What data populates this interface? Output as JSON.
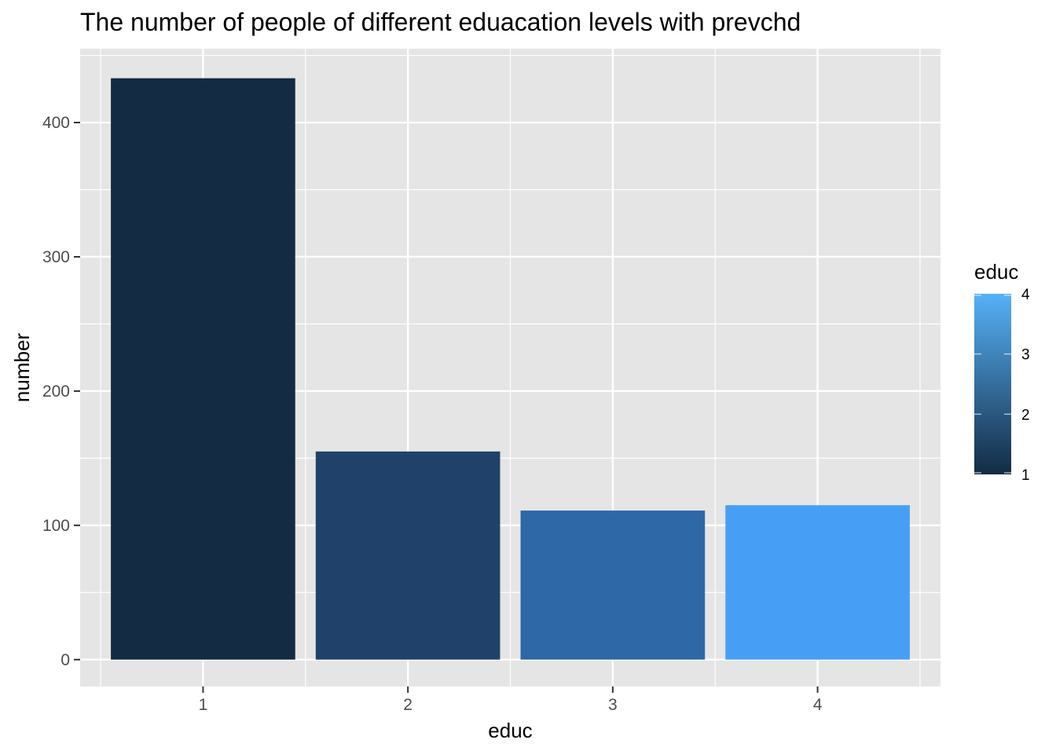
{
  "chart_data": {
    "type": "bar",
    "title": "The number of people of different eduacation levels with prevchd",
    "xlabel": "educ",
    "ylabel": "number",
    "categories": [
      "1",
      "2",
      "3",
      "4"
    ],
    "values": [
      433,
      155,
      111,
      115
    ],
    "ylim": [
      -20,
      455
    ],
    "yticks": [
      0,
      100,
      200,
      300,
      400
    ],
    "y_tick_labels": [
      "0",
      "100",
      "200",
      "300",
      "400"
    ],
    "grid": true,
    "legend": {
      "title": "educ",
      "position": "right",
      "type": "colorbar",
      "range": [
        1,
        4
      ],
      "ticks": [
        1,
        2,
        3,
        4
      ],
      "tick_labels": [
        "1",
        "2",
        "3",
        "4"
      ],
      "low_color": "#132b43",
      "high_color": "#56b1f7"
    },
    "bar_colors": [
      "#132b43",
      "#20426a",
      "#2e68a7",
      "#479ff5"
    ],
    "panel_background": "#e5e5e5",
    "grid_color": "#ffffff"
  }
}
